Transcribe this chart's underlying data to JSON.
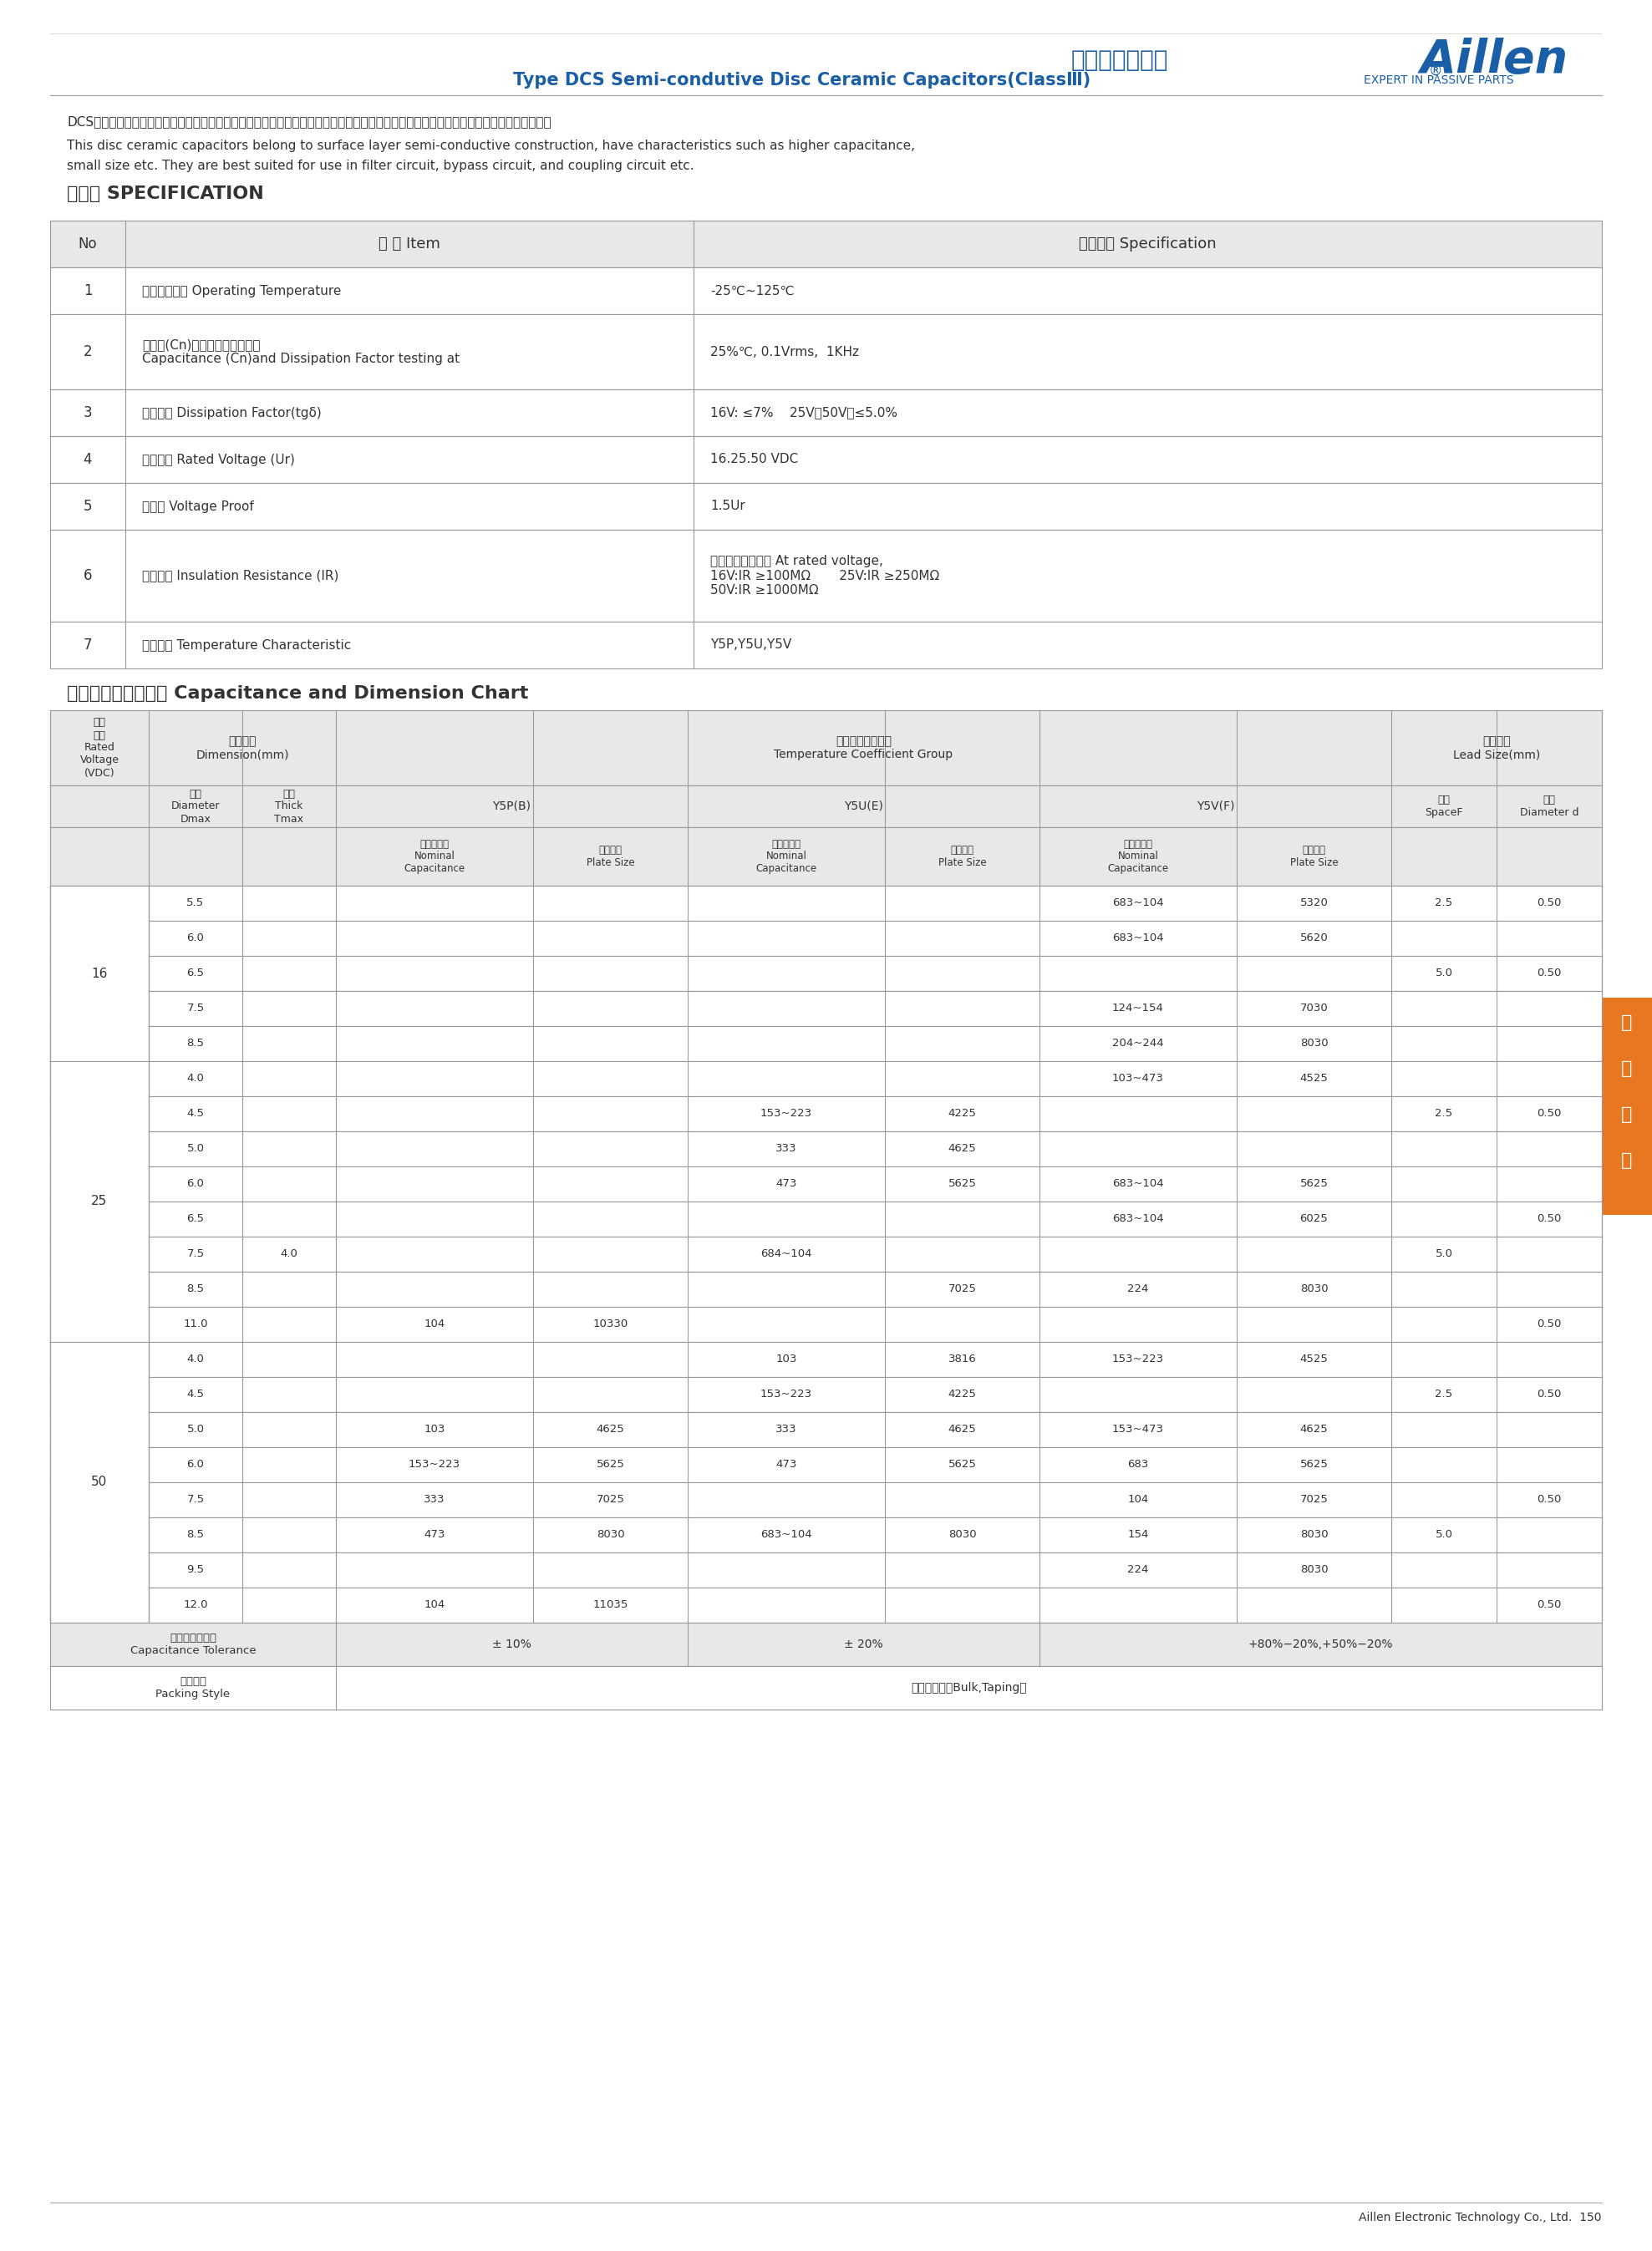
{
  "title_chinese": "半導體瓷介電容",
  "title_english": "Type DCS Semi-condutive Disc Ceramic Capacitors(ClassⅢ)",
  "brand": "Aillen",
  "brand_sub": "EXPERT IN PASSIVE PARTS",
  "desc_chinese": "DCS型半導體圓片瓷介電容器的陶瓷芯片屬于表面層半導體結構，其電容器具有大容量、小體積等特點，適用于濾波、旁路、耦合等電路中。",
  "desc_english1": "This disc ceramic capacitors belong to surface layer semi-conductive construction, have characteristics such as higher capacitance,",
  "desc_english2": "small size etc. They are best suited for use in filter circuit, bypass circuit, and coupling circuit etc.",
  "spec_title": "規格書 SPECIFICATION",
  "spec_headers": [
    "No",
    "名 稱 Item",
    "技術要求 Specification"
  ],
  "spec_rows": [
    [
      "1",
      "使用溫度範圍 Operating Temperature",
      "-25℃~125℃"
    ],
    [
      "2",
      "電容量(Cn)和介質損耗測試條件\nCapacitance (Cn)and Dissipation Factor testing at",
      "25%℃, 0.1Vrms,  1KHz"
    ],
    [
      "3",
      "介質損耗 Dissipation Factor(tgδ)",
      "16V: ≤7%    25V、50V：≤5.0%"
    ],
    [
      "4",
      "額定電壓 Rated Voltage (Ur)",
      "16.25.50 VDC"
    ],
    [
      "5",
      "耐電壓 Voltage Proof",
      "1.5Ur"
    ],
    [
      "6",
      "絕緣電阻 Insulation Resistance (IR)",
      "在額定電壓下測試 At rated voltage,\n16V:IR ≥100MΩ       25V:IR ≥250MΩ\n50V:IR ≥1000MΩ"
    ],
    [
      "7",
      "溫度系數 Temperature Characteristic",
      "Y5P,Y5U,Y5V"
    ]
  ],
  "cap_title": "電容量與尺寸對照表 Capacitance and Dimension Chart",
  "cap_headers_row1": [
    "額定\n電壓\nRated\nVoltage\n(VDC)",
    "產品尺寸\nDimension(mm)",
    "",
    "電容溫度系數組別\nTemperature Coefficient Group",
    "",
    "",
    "",
    "",
    "",
    "引線尺寸\nLead Size(mm)",
    ""
  ],
  "cap_headers_row2": [
    "",
    "直徑\nDiameter\nDmax",
    "厚度\nThick\nTmax",
    "Y5P(B)",
    "",
    "Y5U(E)",
    "",
    "Y5V(F)",
    "",
    "間距\nSpaceF",
    "直徑\nDiameter d"
  ],
  "cap_headers_row3": [
    "",
    "",
    "",
    "電容量範圍\nNominal\nCapacitance",
    "素子尺寸\nPlate Size",
    "電容量範圍\nNominal\nCapacitance",
    "素子尺寸\nPlate Size",
    "電容量範圍\nNominal\nCapacitance",
    "素子尺寸\nPlate Size",
    "",
    ""
  ],
  "cap_data": [
    [
      "16",
      "5.5",
      "",
      "",
      "",
      "",
      "",
      "683~104",
      "5320",
      "2.5",
      "0.50"
    ],
    [
      "",
      "6.0",
      "",
      "",
      "",
      "",
      "",
      "683~104",
      "5620",
      "",
      ""
    ],
    [
      "",
      "6.5",
      "",
      "",
      "",
      "",
      "",
      "",
      "",
      "5.0",
      "0.50"
    ],
    [
      "",
      "7.5",
      "",
      "",
      "",
      "",
      "",
      "124~154",
      "7030",
      "",
      ""
    ],
    [
      "",
      "8.5",
      "",
      "",
      "",
      "",
      "",
      "204~244",
      "8030",
      "",
      ""
    ],
    [
      "25",
      "4.0",
      "",
      "",
      "",
      "",
      "",
      "103~473",
      "4525",
      "",
      ""
    ],
    [
      "",
      "4.5",
      "",
      "",
      "",
      "153~223",
      "4225",
      "",
      "",
      "2.5",
      "0.50"
    ],
    [
      "",
      "5.0",
      "",
      "",
      "",
      "333",
      "4625",
      "",
      "",
      "",
      ""
    ],
    [
      "",
      "6.0",
      "",
      "",
      "",
      "473",
      "5625",
      "683~104",
      "5625",
      "",
      ""
    ],
    [
      "",
      "6.5",
      "",
      "",
      "",
      "",
      "",
      "683~104",
      "6025",
      "",
      "0.50"
    ],
    [
      "",
      "7.5",
      "4.0",
      "",
      "",
      "684~104",
      "",
      "",
      "",
      "5.0",
      ""
    ],
    [
      "",
      "8.5",
      "",
      "",
      "",
      "",
      "7025",
      "224",
      "8030",
      "",
      ""
    ],
    [
      "",
      "11.0",
      "",
      "104",
      "10330",
      "",
      "",
      "",
      "",
      "",
      "0.50"
    ],
    [
      "50",
      "4.0",
      "",
      "",
      "",
      "103",
      "3816",
      "153~223",
      "4525",
      "",
      ""
    ],
    [
      "",
      "4.5",
      "",
      "",
      "",
      "153~223",
      "4225",
      "",
      "",
      "2.5",
      "0.50"
    ],
    [
      "",
      "5.0",
      "",
      "103",
      "4625",
      "333",
      "4625",
      "153~473",
      "4625",
      "",
      ""
    ],
    [
      "",
      "6.0",
      "",
      "153~223",
      "5625",
      "473",
      "5625",
      "683",
      "5625",
      "",
      ""
    ],
    [
      "",
      "7.5",
      "",
      "333",
      "7025",
      "",
      "",
      "104",
      "7025",
      "",
      "0.50"
    ],
    [
      "",
      "8.5",
      "",
      "473",
      "8030",
      "683~104",
      "8030",
      "154",
      "8030",
      "5.0",
      ""
    ],
    [
      "",
      "9.5",
      "",
      "",
      "",
      "",
      "",
      "224",
      "8030",
      "",
      ""
    ],
    [
      "",
      "12.0",
      "",
      "104",
      "11035",
      "",
      "",
      "",
      "",
      "",
      "0.50"
    ]
  ],
  "tolerance_row": [
    "電容量允許偏差\nCapacitance Tolerance",
    "± 10%",
    "± 20%",
    "+80%−20%,+50%−20%",
    ""
  ],
  "packing_row": [
    "包裝方式\nPacking Style",
    "散裝，編帶（Bulk,Taping）"
  ],
  "footer": "Aillen Electronic Technology Co., Ltd.  150",
  "sidebar_text": "瓷\n介\n電\n容",
  "blue_color": "#1B5EA8",
  "dark_blue": "#1B5EA8",
  "orange_color": "#E87722",
  "light_gray": "#E8E8E8",
  "border_color": "#999999",
  "table_gray": "#D8D8D8",
  "text_color": "#333333"
}
